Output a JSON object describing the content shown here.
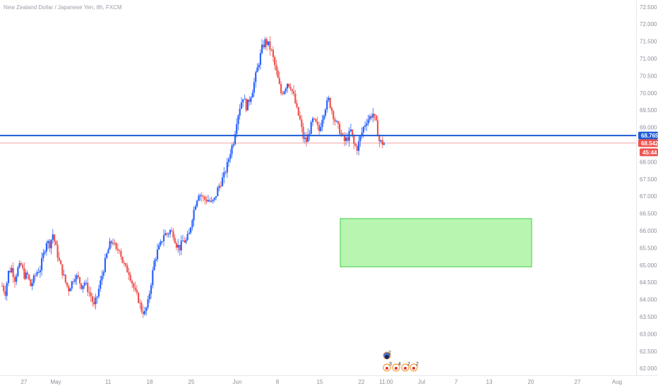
{
  "chart_data": {
    "type": "candlestick",
    "title": "New Zealand Dollar / Japanese Yen, 8h, FXCM",
    "colors": {
      "up": "#2962ff",
      "down": "#ef5350",
      "support": "#1e5bd6",
      "price_line": "#ef5350",
      "zone_fill": "#b7f5b0",
      "zone_stroke": "#3fcf3f",
      "axis_text": "#8a8f99"
    },
    "y_axis": {
      "ylim": [
        61.8,
        72.7
      ],
      "ticks": [
        "62.000",
        "62.500",
        "63.000",
        "63.500",
        "64.000",
        "64.500",
        "65.000",
        "65.500",
        "66.000",
        "66.500",
        "67.000",
        "67.500",
        "68.000",
        "68.500",
        "69.000",
        "69.500",
        "70.000",
        "70.500",
        "71.000",
        "71.500",
        "72.000",
        "72.500"
      ]
    },
    "x_axis": {
      "ticks": [
        "27",
        "May",
        "11",
        "18",
        "25",
        "Jun",
        "8",
        "15",
        "22",
        "11:00",
        "Jul",
        "7",
        "13",
        "20",
        "27",
        "Aug"
      ]
    },
    "price_tags": {
      "support": {
        "label": "68.765",
        "value": 68.765
      },
      "last": {
        "label": "68.542",
        "value": 68.542
      },
      "countdown": {
        "label": "45:44"
      }
    },
    "zone": {
      "y_top": 66.35,
      "y_bottom": 64.95
    },
    "events": {
      "top_count": "2",
      "row": [
        "3",
        "4",
        "2",
        "2"
      ]
    },
    "close_path": [
      64.4,
      64.2,
      64.8,
      64.9,
      64.6,
      64.9,
      65.0,
      64.7,
      64.7,
      64.4,
      64.6,
      64.8,
      64.9,
      65.3,
      65.7,
      65.6,
      65.9,
      65.5,
      65.1,
      64.8,
      64.5,
      64.3,
      64.5,
      64.7,
      64.6,
      64.4,
      64.5,
      64.3,
      64.1,
      63.8,
      64.1,
      64.5,
      64.9,
      65.3,
      65.6,
      65.7,
      65.4,
      65.5,
      65.1,
      64.9,
      64.8,
      64.5,
      64.2,
      64.0,
      63.7,
      63.6,
      63.9,
      64.5,
      65.1,
      65.4,
      65.6,
      65.9,
      65.9,
      66.0,
      65.9,
      65.6,
      65.5,
      65.7,
      65.7,
      65.9,
      66.4,
      66.8,
      67.1,
      67.0,
      66.9,
      66.9,
      66.8,
      66.9,
      67.2,
      67.4,
      67.6,
      67.9,
      68.3,
      68.6,
      69.2,
      69.6,
      69.9,
      69.6,
      69.8,
      70.1,
      70.5,
      70.9,
      71.3,
      71.5,
      71.4,
      71.2,
      70.8,
      70.4,
      70.0,
      70.1,
      70.3,
      70.2,
      69.9,
      69.5,
      69.2,
      68.7,
      68.6,
      68.9,
      69.2,
      69.1,
      68.9,
      69.3,
      69.6,
      69.8,
      69.5,
      69.2,
      69.0,
      68.8,
      68.6,
      68.7,
      68.9,
      68.5,
      68.4,
      68.7,
      69.0,
      69.2,
      69.3,
      69.4,
      69.1,
      68.6,
      68.54
    ]
  }
}
